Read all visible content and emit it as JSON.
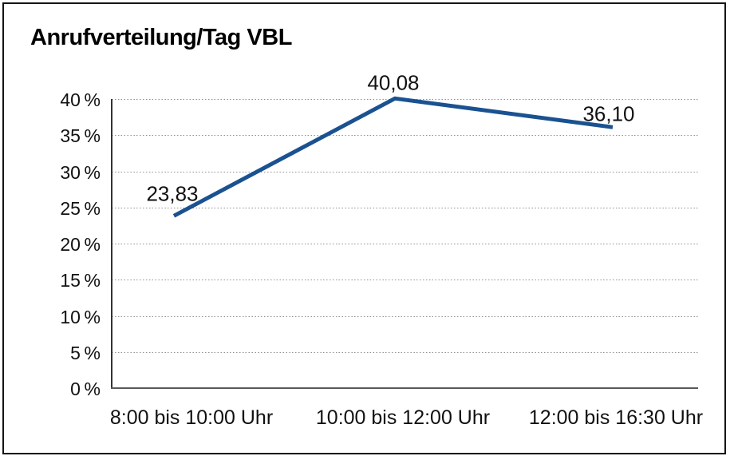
{
  "window": {
    "background": "#ffffff",
    "border_color": "#141414"
  },
  "chart_data": {
    "type": "line",
    "title": "Anrufverteilung/Tag VBL",
    "categories": [
      "8:00 bis 10:00 Uhr",
      "10:00 bis 12:00 Uhr",
      "12:00 bis 16:30 Uhr"
    ],
    "series": [
      {
        "values": [
          23.83,
          40.08,
          36.1
        ],
        "point_labels": [
          "23,83",
          "40,08",
          "36,10"
        ],
        "color": "#1A5291",
        "stroke_width": 5
      }
    ],
    "xlabel": "",
    "ylabel": "",
    "ylim": [
      0,
      40
    ],
    "yticks": [
      {
        "value": 40,
        "label": "40 %"
      },
      {
        "value": 35,
        "label": "35 %"
      },
      {
        "value": 30,
        "label": "30 %"
      },
      {
        "value": 25,
        "label": "25 %"
      },
      {
        "value": 20,
        "label": "20 %"
      },
      {
        "value": 15,
        "label": "15 %"
      },
      {
        "value": 10,
        "label": "10 %"
      },
      {
        "value": 5,
        "label": "5 %"
      },
      {
        "value": 0,
        "label": "0 %"
      }
    ],
    "grid": "horizontal-dotted",
    "legend": "none",
    "grid_color": "#8f8f8f",
    "text_color": "#111111"
  }
}
